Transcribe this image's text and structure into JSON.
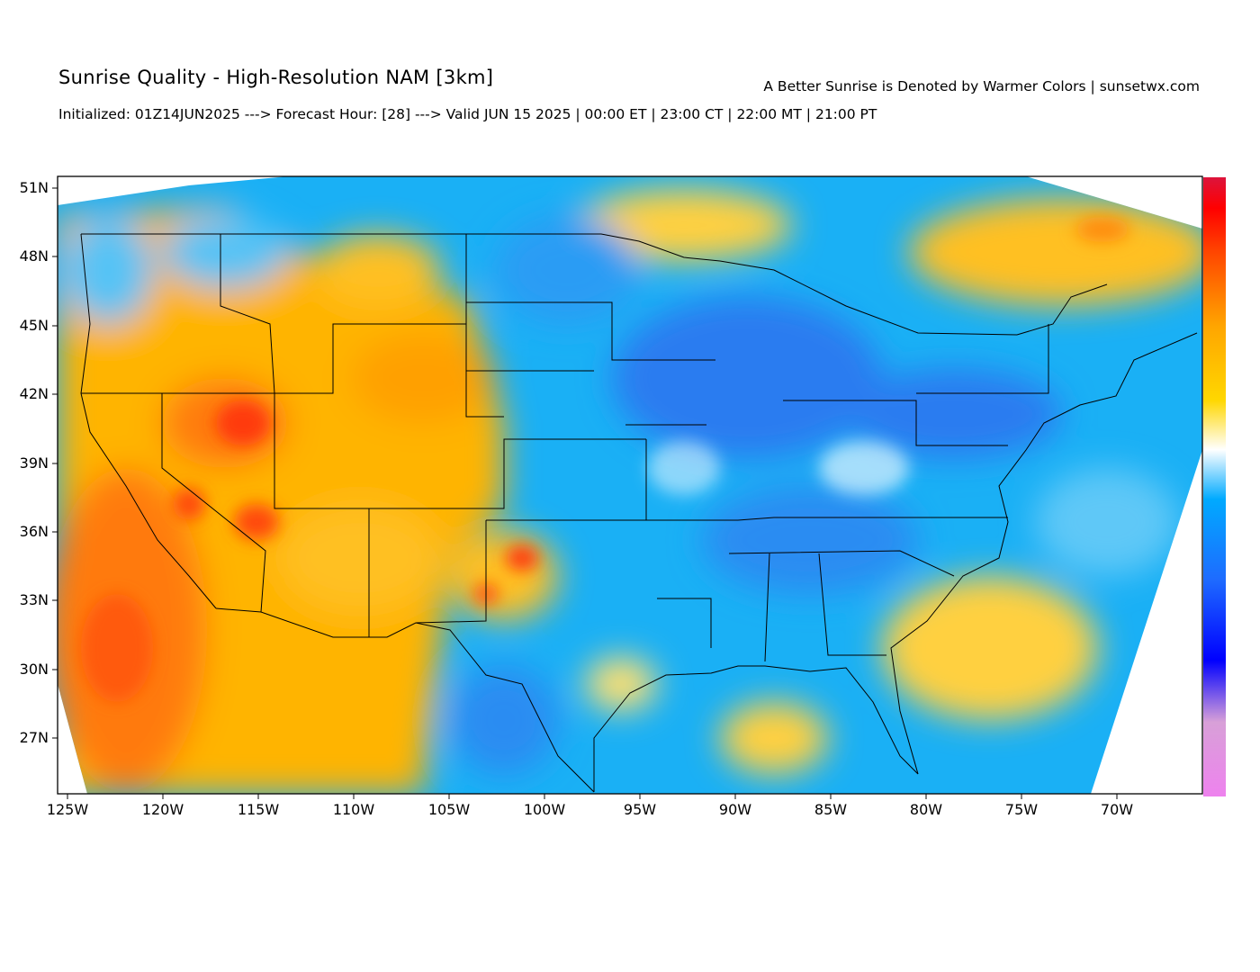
{
  "header": {
    "title": "Sunrise Quality - High-Resolution NAM [3km]",
    "credit": "A Better Sunrise is Denoted by Warmer Colors | sunsetwx.com",
    "subtitle": "Initialized: 01Z14JUN2025 ---> Forecast Hour: [28] ---> Valid JUN 15 2025 | 00:00 ET | 23:00 CT | 22:00 MT | 21:00 PT"
  },
  "map": {
    "lat_labels": [
      "51N",
      "48N",
      "45N",
      "42N",
      "39N",
      "36N",
      "33N",
      "30N",
      "27N"
    ],
    "lon_labels": [
      "125W",
      "120W",
      "115W",
      "110W",
      "105W",
      "100W",
      "95W",
      "90W",
      "85W",
      "80W",
      "75W",
      "70W"
    ],
    "colorbar": [
      "#ee82ee",
      "#dda0dd",
      "#0000ff",
      "#1e6bff",
      "#00aaff",
      "#ffffff",
      "#ffd700",
      "#ffa500",
      "#ff4500",
      "#ff0000",
      "#dc143c"
    ]
  }
}
